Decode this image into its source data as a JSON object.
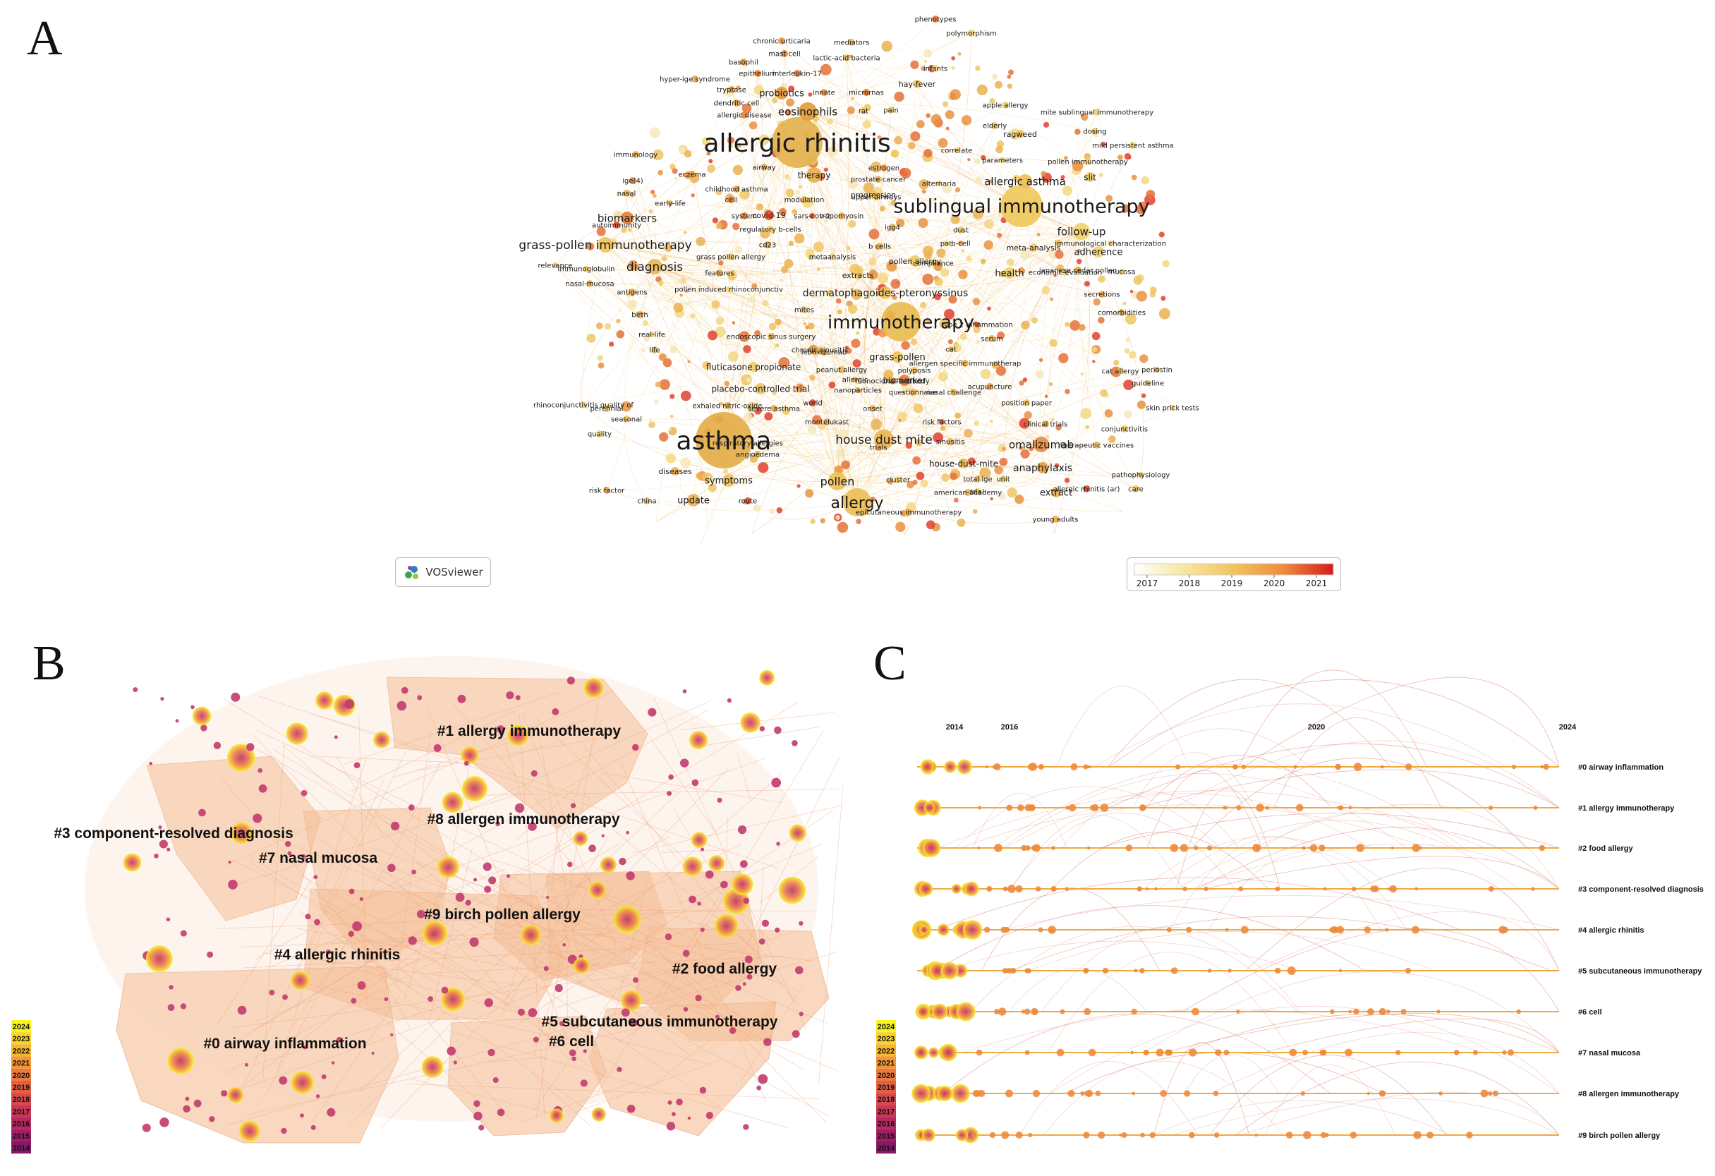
{
  "panels": {
    "a": {
      "letter": "A",
      "keywords": [
        {
          "t": "allergic rhinitis",
          "c": "#e3b04b"
        },
        {
          "t": "asthma",
          "c": "#e3ac45"
        },
        {
          "t": "sublingual immunotherapy",
          "c": "#efc85a"
        },
        {
          "t": "immunotherapy",
          "c": "#e9ba4f"
        },
        {
          "t": "allergy",
          "c": "#ecbe54"
        },
        {
          "t": "house dust mite",
          "c": "#eab552"
        },
        {
          "t": "grass-pollen immunotherapy",
          "c": "#eec35a"
        },
        {
          "t": "diagnosis",
          "c": "#e9b854"
        },
        {
          "t": "follow-up",
          "c": "#f2d06a"
        },
        {
          "t": "eosinophils",
          "c": "#e39a3c"
        },
        {
          "t": "pollen",
          "c": "#ecc155"
        },
        {
          "t": "omalizumab",
          "c": "#e98a3a"
        },
        {
          "t": "allergic asthma",
          "c": "#e9bc55"
        },
        {
          "t": "biomarkers",
          "c": "#e67c33"
        },
        {
          "t": "therapy",
          "c": "#e7b04b"
        },
        {
          "t": "dermatophagoides-pteronyssinus",
          "c": "#efc560"
        },
        {
          "t": "anaphylaxis",
          "c": "#e99a3e"
        },
        {
          "t": "adherence",
          "c": "#f1cf6a"
        },
        {
          "t": "symptoms",
          "c": "#ecc05a"
        },
        {
          "t": "update",
          "c": "#ebb04f"
        },
        {
          "t": "grass-pollen",
          "c": "#edc25b"
        },
        {
          "t": "health",
          "c": "#f0cc66"
        },
        {
          "t": "probiotics",
          "c": "#e5963c"
        },
        {
          "t": "extract",
          "c": "#e8b04f"
        },
        {
          "t": "placebo-controlled trial",
          "c": "#eec45e"
        },
        {
          "t": "fluticasone propionate",
          "c": "#f0cc68"
        },
        {
          "t": "biomarker",
          "c": "#e57d33"
        },
        {
          "t": "slit",
          "c": "#f1d06b"
        },
        {
          "t": "pollen allergy",
          "c": "#efc660"
        },
        {
          "t": "meta-analysis",
          "c": "#f0ca64"
        },
        {
          "t": "covid-19",
          "c": "#e24a2c"
        },
        {
          "t": "progression",
          "c": "#efc15c"
        },
        {
          "t": "diseases",
          "c": "#e8b350"
        },
        {
          "t": "house-dust-mite",
          "c": "#ecbb57"
        },
        {
          "t": "extracts",
          "c": "#efc460"
        },
        {
          "t": "chronic urticaria",
          "c": "#e9963e"
        },
        {
          "t": "mast cell",
          "c": "#e3843a"
        },
        {
          "t": "basophil",
          "c": "#e69a40"
        },
        {
          "t": "epithelium",
          "c": "#e28338"
        },
        {
          "t": "interleukin-17",
          "c": "#e27536"
        },
        {
          "t": "lactic-acid bacteria",
          "c": "#efc460"
        },
        {
          "t": "mediators",
          "c": "#ecbe5a"
        },
        {
          "t": "phenotypes",
          "c": "#e57c35"
        },
        {
          "t": "polymorphism",
          "c": "#eeca66"
        },
        {
          "t": "hay-fever",
          "c": "#ecc25c"
        },
        {
          "t": "infants",
          "c": "#f1d272"
        },
        {
          "t": "hyper-ige syndrome",
          "c": "#e9a950"
        },
        {
          "t": "tryptase",
          "c": "#e8a346"
        },
        {
          "t": "innate",
          "c": "#e6993f"
        },
        {
          "t": "micrornas",
          "c": "#e28236"
        },
        {
          "t": "dendritic cell",
          "c": "#e9a24a"
        },
        {
          "t": "rat",
          "c": "#efc662"
        },
        {
          "t": "allergic disease",
          "c": "#e28538"
        },
        {
          "t": "pain",
          "c": "#f1cf6b"
        },
        {
          "t": "apple allergy",
          "c": "#f2d474"
        },
        {
          "t": "mite sublingual immunotherapy",
          "c": "#f2d474"
        },
        {
          "t": "elderly",
          "c": "#efc964"
        },
        {
          "t": "ragweed",
          "c": "#ecc05c"
        },
        {
          "t": "dosing",
          "c": "#eec862"
        },
        {
          "t": "mild persistent asthma",
          "c": "#f2d474"
        },
        {
          "t": "immunology",
          "c": "#ebb556"
        },
        {
          "t": "correlate",
          "c": "#f1d06c"
        },
        {
          "t": "parameters",
          "c": "#f1d06c"
        },
        {
          "t": "pollen immunotherapy",
          "c": "#f0cc66"
        },
        {
          "t": "airway",
          "c": "#e7aa48"
        },
        {
          "t": "estrogen",
          "c": "#e89a42"
        },
        {
          "t": "ige(4)",
          "c": "#e58a3a"
        },
        {
          "t": "eczema",
          "c": "#e89b42"
        },
        {
          "t": "prostate cancer",
          "c": "#ebb155"
        },
        {
          "t": "alternaria",
          "c": "#f0cc68"
        },
        {
          "t": "nasal",
          "c": "#ebb457"
        },
        {
          "t": "childhood asthma",
          "c": "#e7a546"
        },
        {
          "t": "modulation",
          "c": "#eab152"
        },
        {
          "t": "upper airways",
          "c": "#eec662"
        },
        {
          "t": "early-life",
          "c": "#e9a84b"
        },
        {
          "t": "cell",
          "c": "#e58a38"
        },
        {
          "t": "system",
          "c": "#e27d36"
        },
        {
          "t": "sars-cov-2",
          "c": "#e24a2c"
        },
        {
          "t": "tropomyosin",
          "c": "#ebb254"
        },
        {
          "t": "igg4",
          "c": "#e9ad4e"
        },
        {
          "t": "autoimmunity",
          "c": "#e24d2e"
        },
        {
          "t": "regulatory b-cells",
          "c": "#efc862"
        },
        {
          "t": "dust",
          "c": "#f0cc66"
        },
        {
          "t": "pat",
          "c": "#f2d474"
        },
        {
          "t": "b-cell",
          "c": "#e7a046"
        },
        {
          "t": "immunological characterization",
          "c": "#efc562"
        },
        {
          "t": "cd23",
          "c": "#e8a446"
        },
        {
          "t": "b cells",
          "c": "#e9ad4e"
        },
        {
          "t": "relevance",
          "c": "#f0cb66"
        },
        {
          "t": "immunoglobulin",
          "c": "#efc762"
        },
        {
          "t": "grass pollen allergy",
          "c": "#efc560"
        },
        {
          "t": "metaanalysis",
          "c": "#f1d06c"
        },
        {
          "t": "compliance",
          "c": "#f2d474"
        },
        {
          "t": "japanese cedar pollen",
          "c": "#e9ab4e"
        },
        {
          "t": "mucosa",
          "c": "#ebb456"
        },
        {
          "t": "economic-evaluation",
          "c": "#f2d474"
        },
        {
          "t": "nasal-mucosa",
          "c": "#eab355"
        },
        {
          "t": "features",
          "c": "#e7a046"
        },
        {
          "t": "secretions",
          "c": "#ebb456"
        },
        {
          "t": "antigens",
          "c": "#e9aa4c"
        },
        {
          "t": "pollen induced rhinoconjunctiv",
          "c": "#f2d474"
        },
        {
          "t": "comorbidities",
          "c": "#ebb456"
        },
        {
          "t": "birth",
          "c": "#e8a446"
        },
        {
          "t": "mites",
          "c": "#eeca66"
        },
        {
          "t": "type 2 inflammation",
          "c": "#e24a2c"
        },
        {
          "t": "real-life",
          "c": "#efcb66"
        },
        {
          "t": "serum",
          "c": "#e9ac4e"
        },
        {
          "t": "endoscopic sinus surgery",
          "c": "#ebb456"
        },
        {
          "t": "chronic sinusitis",
          "c": "#efc662"
        },
        {
          "t": "life",
          "c": "#edc15e"
        },
        {
          "t": "cat",
          "c": "#ebb456"
        },
        {
          "t": "lebrikizumab",
          "c": "#e9ab4e"
        },
        {
          "t": "allergen specific immunotherap",
          "c": "#e8a446"
        },
        {
          "t": "peanut allergy",
          "c": "#ebb456"
        },
        {
          "t": "periostin",
          "c": "#e9ab4e"
        },
        {
          "t": "polyposis",
          "c": "#ecbc5a"
        },
        {
          "t": "cat allergy",
          "c": "#eeca66"
        },
        {
          "t": "nanoparticles",
          "c": "#e9ab4e"
        },
        {
          "t": "nasal challenge",
          "c": "#ebb456"
        },
        {
          "t": "allergic",
          "c": "#e9a84b"
        },
        {
          "t": "acupuncture",
          "c": "#e7a046"
        },
        {
          "t": "monoclonal-antibody",
          "c": "#e9ab4e"
        },
        {
          "t": "guideline",
          "c": "#ecbc5a"
        },
        {
          "t": "position paper",
          "c": "#efc662"
        },
        {
          "t": "rhinoconjunctivitis quality of",
          "c": "#f2d474"
        },
        {
          "t": "questionnaire",
          "c": "#e9ab4e"
        },
        {
          "t": "exhaled nitric-oxide",
          "c": "#ebb456"
        },
        {
          "t": "perennial",
          "c": "#efc662"
        },
        {
          "t": "severe asthma",
          "c": "#e9a84b"
        },
        {
          "t": "world",
          "c": "#e24a2c"
        },
        {
          "t": "onset",
          "c": "#ebb456"
        },
        {
          "t": "skin prick tests",
          "c": "#efc662"
        },
        {
          "t": "seasonal",
          "c": "#efc662"
        },
        {
          "t": "montelukast",
          "c": "#ebb456"
        },
        {
          "t": "risk factors",
          "c": "#e24a2c"
        },
        {
          "t": "clinical trials",
          "c": "#e9ab4e"
        },
        {
          "t": "conjunctivitis",
          "c": "#efc662"
        },
        {
          "t": "quality",
          "c": "#f2d474"
        },
        {
          "t": "respiratory allergies",
          "c": "#efc662"
        },
        {
          "t": "sinusitis",
          "c": "#ebb456"
        },
        {
          "t": "therapeutic vaccines",
          "c": "#efc662"
        },
        {
          "t": "angioedema",
          "c": "#e9ab4e"
        },
        {
          "t": "pathophysiology",
          "c": "#ebb456"
        },
        {
          "t": "trials",
          "c": "#e9ab4e"
        },
        {
          "t": "care",
          "c": "#efc662"
        },
        {
          "t": "total ige",
          "c": "#ebb456"
        },
        {
          "t": "cluster",
          "c": "#f2d474"
        },
        {
          "t": "allergic rhinitis (ar)",
          "c": "#e24a2c"
        },
        {
          "t": "unit",
          "c": "#efc662"
        },
        {
          "t": "american-academy",
          "c": "#ebb456"
        },
        {
          "t": "risk factor",
          "c": "#e9a84b"
        },
        {
          "t": "trial",
          "c": "#efc662"
        },
        {
          "t": "china",
          "c": "#efc662"
        },
        {
          "t": "route",
          "c": "#e24a2c"
        },
        {
          "t": "epicutaneous immunotherapy",
          "c": "#e9ab4e"
        },
        {
          "t": "young adults",
          "c": "#e9ab4e"
        }
      ],
      "badge": "VOSviewer",
      "legend_ticks": [
        "2017",
        "2018",
        "2019",
        "2020",
        "2021"
      ],
      "legend_colors": [
        "#ffffff",
        "#f7e6a0",
        "#f2c35e",
        "#ec8c3d",
        "#e23a2a",
        "#d7191c"
      ]
    },
    "b": {
      "letter": "B",
      "clusters": [
        "#1 allergy immunotherapy",
        "#8 allergen immunotherapy",
        "#3 component-resolved diagnosis",
        "#7 nasal mucosa",
        "#9 birch pollen allergy",
        "#4 allergic rhinitis",
        "#2 food allergy",
        "#5 subcutaneous immunotherapy",
        "#6 cell",
        "#0 airway inflammation"
      ],
      "years": [
        "2024",
        "2023",
        "2022",
        "2021",
        "2020",
        "2019",
        "2018",
        "2017",
        "2016",
        "2015",
        "2014"
      ],
      "year_colors": [
        "#f7f421",
        "#f7d52a",
        "#f6b631",
        "#f29636",
        "#ec7a3c",
        "#e35f44",
        "#d8494d",
        "#c93756",
        "#b6285e",
        "#a01e66",
        "#8a166b"
      ]
    },
    "c": {
      "letter": "C",
      "clusters": [
        "#0 airway inflammation",
        "#1 allergy immunotherapy",
        "#2 food allergy",
        "#3 component-resolved diagnosis",
        "#4 allergic rhinitis",
        "#5 subcutaneous immunotherapy",
        "#6 cell",
        "#7 nasal mucosa",
        "#8 allergen immunotherapy",
        "#9 birch pollen allergy"
      ],
      "top_years": [
        "2014",
        "2016",
        "2020",
        "2024"
      ],
      "years": [
        "2024",
        "2023",
        "2022",
        "2021",
        "2020",
        "2019",
        "2018",
        "2017",
        "2016",
        "2015",
        "2014"
      ]
    }
  }
}
